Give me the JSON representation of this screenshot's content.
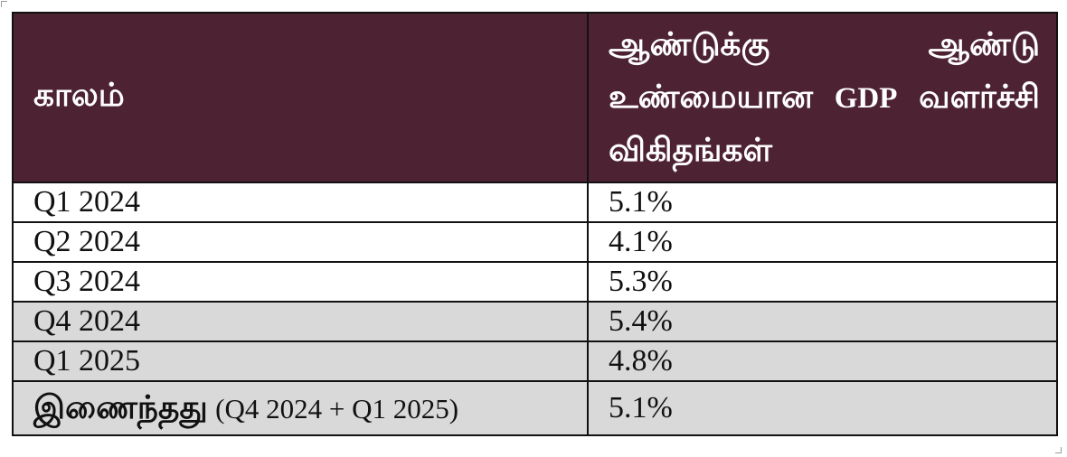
{
  "table": {
    "headers": {
      "period": "காலம்",
      "rate_line1": "ஆண்டுக்கு ஆண்டு",
      "rate_line2_tamil": "உண்மையான",
      "rate_line2_abbr": "GDP",
      "rate_line3": "வளர்ச்சி விகிதங்கள்"
    },
    "rows": [
      {
        "period": "Q1 2024",
        "rate": "5.1%"
      },
      {
        "period": "Q2 2024",
        "rate": "4.1%"
      },
      {
        "period": "Q3 2024",
        "rate": "5.3%"
      },
      {
        "period": "Q4 2024",
        "rate": "5.4%"
      },
      {
        "period": "Q1 2025",
        "rate": "4.8%"
      }
    ],
    "combined": {
      "label": "இணைந்தது",
      "range": "(Q4 2024 + Q1 2025)",
      "rate": "5.1%"
    }
  },
  "colors": {
    "header_background": "#4d2233",
    "header_text": "#ffffff",
    "shaded_row": "#d9d9d9",
    "border": "#111111"
  }
}
